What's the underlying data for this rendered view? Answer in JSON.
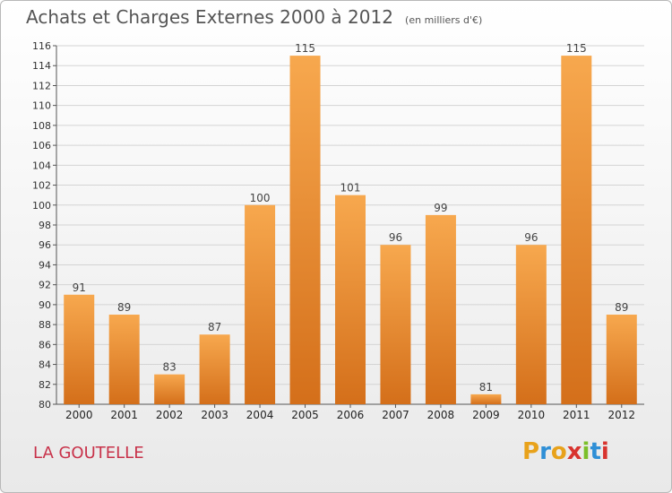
{
  "header": {
    "title": "Achats et Charges Externes 2000 à 2012",
    "subtitle": "(en milliers d'€)"
  },
  "footer": {
    "place": "LA GOUTELLE",
    "logo_text": "Proxiti"
  },
  "colors": {
    "bar_light": "#f7a84e",
    "bar_dark": "#d46f1a",
    "title": "#555555",
    "place": "#c8324a"
  },
  "chart_data": {
    "type": "bar",
    "title": "Achats et Charges Externes 2000 à 2012",
    "subtitle": "(en milliers d'€)",
    "xlabel": "",
    "ylabel": "",
    "categories": [
      "2000",
      "2001",
      "2002",
      "2003",
      "2004",
      "2005",
      "2006",
      "2007",
      "2008",
      "2009",
      "2010",
      "2011",
      "2012"
    ],
    "values": [
      91,
      89,
      83,
      87,
      100,
      115,
      101,
      96,
      99,
      81,
      96,
      115,
      89
    ],
    "ylim": [
      80,
      116
    ],
    "yticks": [
      80,
      82,
      84,
      86,
      88,
      90,
      92,
      94,
      96,
      98,
      100,
      102,
      104,
      106,
      108,
      110,
      112,
      114,
      116
    ],
    "grid": true,
    "legend": "none"
  }
}
